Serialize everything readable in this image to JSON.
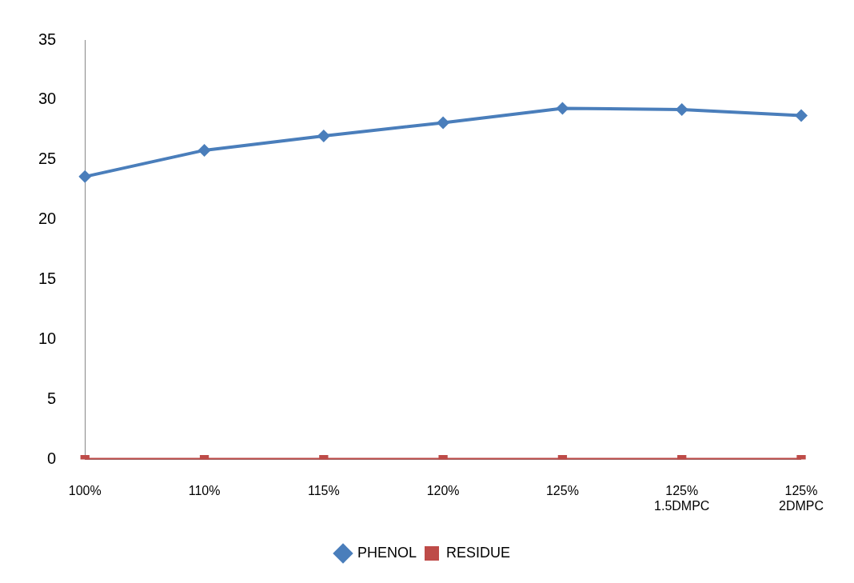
{
  "chart_data": {
    "type": "line",
    "categories": [
      "100%",
      "110%",
      "115%",
      "120%",
      "125%",
      "125%\n1.5DMPC",
      "125%\n2DMPC"
    ],
    "series": [
      {
        "name": "PHENOL",
        "color": "#4a7ebb",
        "marker": "diamond",
        "values": [
          23.6,
          25.8,
          27.0,
          28.1,
          29.3,
          29.2,
          28.7
        ]
      },
      {
        "name": "RESIDUE",
        "color": "#be4b48",
        "marker": "square",
        "values": [
          0,
          0,
          0,
          0,
          0,
          0,
          0
        ]
      }
    ],
    "ylim": [
      0,
      35
    ],
    "yticks": [
      0,
      5,
      10,
      15,
      20,
      25,
      30,
      35
    ],
    "grid": false,
    "legend": "bottom",
    "line_style": "solid"
  }
}
